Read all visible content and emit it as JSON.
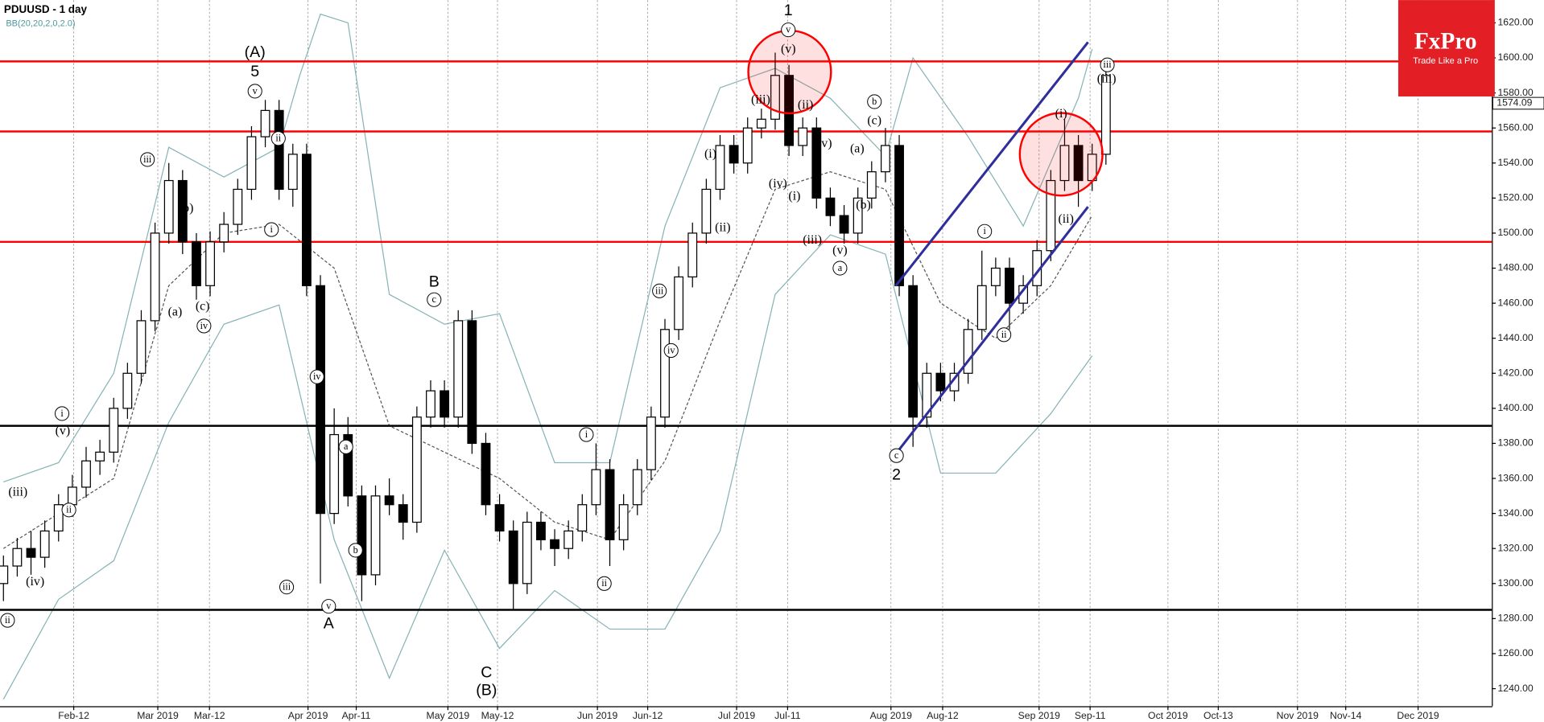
{
  "chart_data": {
    "type": "candlestick",
    "title": "PDUUSD  - 1 day",
    "subtitle": "BB(20,20,2,0,2.0)",
    "x": [
      0,
      2,
      4,
      6,
      8,
      10,
      12,
      14,
      16,
      18,
      20,
      22,
      24,
      26,
      28,
      30,
      32,
      34,
      36,
      38,
      40,
      42,
      44,
      46,
      48,
      50,
      52,
      54,
      56,
      58,
      60,
      62,
      64,
      66,
      68,
      70,
      72,
      74,
      76,
      78,
      80,
      82,
      84,
      86,
      88,
      90,
      92,
      94,
      96,
      98,
      100,
      102,
      104,
      106,
      108,
      110,
      112,
      114,
      116,
      118,
      120,
      122,
      124,
      126,
      128,
      130,
      132,
      134,
      136,
      138,
      140,
      142,
      144,
      146,
      148,
      150,
      152,
      154,
      156,
      158,
      160
    ],
    "open": [
      1300,
      1310,
      1320,
      1315,
      1330,
      1345,
      1355,
      1370,
      1375,
      1400,
      1420,
      1450,
      1500,
      1530,
      1495,
      1470,
      1495,
      1505,
      1525,
      1555,
      1570,
      1525,
      1545,
      1470,
      1340,
      1385,
      1350,
      1305,
      1350,
      1345,
      1335,
      1395,
      1410,
      1395,
      1450,
      1380,
      1345,
      1330,
      1300,
      1335,
      1325,
      1320,
      1330,
      1345,
      1365,
      1325,
      1345,
      1365,
      1395,
      1445,
      1475,
      1500,
      1525,
      1550,
      1540,
      1560,
      1565,
      1590,
      1550,
      1560,
      1520,
      1510,
      1500,
      1520,
      1535,
      1550,
      1470,
      1395,
      1420,
      1410,
      1420,
      1445,
      1470,
      1480,
      1460,
      1470,
      1490,
      1530,
      1550,
      1530,
      1545
    ],
    "high": [
      1316,
      1326,
      1330,
      1336,
      1351,
      1362,
      1378,
      1382,
      1406,
      1426,
      1456,
      1506,
      1540,
      1536,
      1500,
      1501,
      1512,
      1531,
      1561,
      1576,
      1576,
      1551,
      1551,
      1476,
      1400,
      1395,
      1356,
      1356,
      1360,
      1351,
      1401,
      1416,
      1416,
      1456,
      1456,
      1386,
      1351,
      1336,
      1341,
      1341,
      1331,
      1336,
      1351,
      1380,
      1371,
      1351,
      1371,
      1401,
      1451,
      1481,
      1506,
      1531,
      1556,
      1556,
      1566,
      1571,
      1603,
      1596,
      1566,
      1566,
      1526,
      1516,
      1526,
      1541,
      1560,
      1556,
      1476,
      1426,
      1426,
      1426,
      1451,
      1490,
      1486,
      1486,
      1476,
      1496,
      1536,
      1565,
      1556,
      1551,
      1598
    ],
    "low": [
      1290,
      1304,
      1305,
      1309,
      1324,
      1338,
      1349,
      1362,
      1369,
      1394,
      1414,
      1444,
      1494,
      1488,
      1462,
      1464,
      1489,
      1499,
      1519,
      1549,
      1519,
      1515,
      1464,
      1300,
      1334,
      1344,
      1290,
      1299,
      1339,
      1325,
      1329,
      1389,
      1389,
      1389,
      1374,
      1339,
      1324,
      1285,
      1294,
      1319,
      1310,
      1314,
      1324,
      1339,
      1310,
      1319,
      1339,
      1359,
      1389,
      1439,
      1469,
      1494,
      1519,
      1534,
      1534,
      1554,
      1559,
      1544,
      1544,
      1514,
      1504,
      1494,
      1494,
      1514,
      1529,
      1464,
      1378,
      1389,
      1404,
      1404,
      1414,
      1439,
      1464,
      1445,
      1454,
      1464,
      1484,
      1524,
      1515,
      1524,
      1539
    ],
    "close": [
      1310,
      1320,
      1315,
      1330,
      1345,
      1355,
      1370,
      1375,
      1400,
      1420,
      1450,
      1500,
      1530,
      1495,
      1470,
      1495,
      1505,
      1525,
      1555,
      1570,
      1525,
      1545,
      1470,
      1340,
      1385,
      1350,
      1305,
      1350,
      1345,
      1335,
      1395,
      1410,
      1395,
      1450,
      1380,
      1345,
      1330,
      1300,
      1335,
      1325,
      1320,
      1330,
      1345,
      1365,
      1325,
      1345,
      1365,
      1395,
      1445,
      1475,
      1500,
      1525,
      1550,
      1540,
      1560,
      1565,
      1590,
      1550,
      1560,
      1520,
      1510,
      1500,
      1520,
      1535,
      1550,
      1470,
      1395,
      1420,
      1410,
      1420,
      1445,
      1470,
      1480,
      1460,
      1470,
      1490,
      1530,
      1550,
      1530,
      1545,
      1590
    ],
    "color_up": "#ffffff",
    "color_down": "#000000",
    "xlim": [
      -0.5,
      216
    ],
    "ylim": [
      1230,
      1633
    ],
    "xticks": [
      {
        "value": 10.2,
        "label": "Feb-12"
      },
      {
        "value": 22.4,
        "label": "Mar 2019"
      },
      {
        "value": 29.9,
        "label": "Mar-12"
      },
      {
        "value": 44.2,
        "label": "Apr 2019"
      },
      {
        "value": 51.2,
        "label": "Apr-11"
      },
      {
        "value": 64.5,
        "label": "May 2019"
      },
      {
        "value": 71.7,
        "label": "May-12"
      },
      {
        "value": 86.2,
        "label": "Jun 2019"
      },
      {
        "value": 93.5,
        "label": "Jun-12"
      },
      {
        "value": 106.4,
        "label": "Jul 2019"
      },
      {
        "value": 113.8,
        "label": "Jul-11"
      },
      {
        "value": 128.8,
        "label": "Aug 2019"
      },
      {
        "value": 136.3,
        "label": "Aug-12"
      },
      {
        "value": 150.3,
        "label": "Sep 2019"
      },
      {
        "value": 157.7,
        "label": "Sep-11"
      },
      {
        "value": 169,
        "label": "Oct 2019"
      },
      {
        "value": 176.3,
        "label": "Oct-13"
      },
      {
        "value": 187.8,
        "label": "Nov 2019"
      },
      {
        "value": 194.8,
        "label": "Nov-14"
      },
      {
        "value": 205.3,
        "label": "Dec 2019"
      }
    ],
    "yticks": [
      {
        "value": 1240,
        "label": "1240.00"
      },
      {
        "value": 1260,
        "label": "1260.00"
      },
      {
        "value": 1280,
        "label": "1280.00"
      },
      {
        "value": 1300,
        "label": "1300.00"
      },
      {
        "value": 1320,
        "label": "1320.00"
      },
      {
        "value": 1340,
        "label": "1340.00"
      },
      {
        "value": 1360,
        "label": "1360.00"
      },
      {
        "value": 1380,
        "label": "1380.00"
      },
      {
        "value": 1400,
        "label": "1400.00"
      },
      {
        "value": 1420,
        "label": "1420.00"
      },
      {
        "value": 1440,
        "label": "1440.00"
      },
      {
        "value": 1460,
        "label": "1460.00"
      },
      {
        "value": 1480,
        "label": "1480.00"
      },
      {
        "value": 1500,
        "label": "1500.00"
      },
      {
        "value": 1520,
        "label": "1520.00"
      },
      {
        "value": 1540,
        "label": "1540.00"
      },
      {
        "value": 1560,
        "label": "1560.00"
      },
      {
        "value": 1580,
        "label": "1580.00"
      },
      {
        "value": 1600,
        "label": "1600.00"
      },
      {
        "value": 1620,
        "label": "1620.00"
      }
    ],
    "grid": true,
    "last_price": 1574.09,
    "bands": [
      {
        "color": "#86b3b5",
        "dash": false,
        "x": [
          0,
          8,
          16,
          24,
          32,
          40,
          43,
          46,
          50,
          56,
          64,
          72,
          80,
          88,
          96,
          104,
          112,
          120,
          128,
          132,
          140,
          148,
          156,
          158
        ],
        "values": [
          1358,
          1369,
          1420,
          1549,
          1532,
          1549,
          1590,
          1625,
          1620,
          1465,
          1448,
          1454,
          1369,
          1369,
          1504,
          1583,
          1594,
          1577,
          1544,
          1600,
          1555,
          1504,
          1577,
          1605
        ]
      },
      {
        "color": "#86b3b5",
        "dash": false,
        "x": [
          0,
          8,
          16,
          24,
          32,
          40,
          48,
          56,
          64,
          72,
          80,
          88,
          96,
          104,
          112,
          120,
          128,
          136,
          144,
          152,
          158
        ],
        "values": [
          1234,
          1291,
          1313,
          1392,
          1448,
          1459,
          1325,
          1246,
          1319,
          1263,
          1296,
          1274,
          1274,
          1330,
          1465,
          1499,
          1488,
          1363,
          1363,
          1397,
          1430
        ]
      },
      {
        "color": "#555555",
        "dash": true,
        "x": [
          0,
          16,
          24,
          32,
          40,
          48,
          56,
          64,
          72,
          80,
          88,
          96,
          104,
          112,
          120,
          128,
          136,
          144,
          152,
          158
        ],
        "values": [
          1320,
          1360,
          1470,
          1500,
          1505,
          1480,
          1390,
          1375,
          1360,
          1335,
          1325,
          1370,
          1450,
          1525,
          1535,
          1525,
          1460,
          1440,
          1470,
          1510
        ]
      }
    ],
    "levels": [
      {
        "value": 1598,
        "color": "#ff0000"
      },
      {
        "value": 1558,
        "color": "#ff0000"
      },
      {
        "value": 1495,
        "color": "#ff0000"
      },
      {
        "value": 1390,
        "color": "#000000"
      },
      {
        "value": 1285,
        "color": "#000000"
      }
    ],
    "channel_color": "#2e2e9c",
    "channel": [
      {
        "x": [
          129.5,
          157.4
        ],
        "values": [
          1470,
          1609
        ]
      },
      {
        "x": [
          129.5,
          157.4
        ],
        "values": [
          1374,
          1515
        ]
      }
    ],
    "circles": [
      {
        "x": 114.1,
        "y": 1592
      },
      {
        "x": 153.5,
        "y": 1545
      }
    ],
    "annotations": [
      {
        "x": 36.5,
        "y": 1603,
        "text": "(A)",
        "size": "big",
        "circled": false
      },
      {
        "x": 36.5,
        "y": 1592,
        "text": "5",
        "size": "big",
        "circled": false
      },
      {
        "x": 36.5,
        "y": 1581,
        "text": "v",
        "size": "small",
        "circled": true
      },
      {
        "x": 62.5,
        "y": 1472,
        "text": "B",
        "size": "big",
        "circled": false
      },
      {
        "x": 62.5,
        "y": 1462,
        "text": "c",
        "size": "small",
        "circled": true
      },
      {
        "x": 47.2,
        "y": 1287,
        "text": "v",
        "size": "small",
        "circled": true
      },
      {
        "x": 47.2,
        "y": 1277,
        "text": "A",
        "size": "big",
        "circled": false
      },
      {
        "x": 70.1,
        "y": 1249,
        "text": "C",
        "size": "big",
        "circled": false
      },
      {
        "x": 70.1,
        "y": 1239,
        "text": "(B)",
        "size": "big",
        "circled": false
      },
      {
        "x": 113.9,
        "y": 1627,
        "text": "1",
        "size": "big",
        "circled": false
      },
      {
        "x": 113.9,
        "y": 1616,
        "text": "v",
        "size": "small",
        "circled": true
      },
      {
        "x": 113.9,
        "y": 1605,
        "text": "(v)",
        "size": "normal",
        "circled": false
      },
      {
        "x": 129.6,
        "y": 1373,
        "text": "c",
        "size": "small",
        "circled": true
      },
      {
        "x": 129.6,
        "y": 1362,
        "text": "2",
        "size": "big",
        "circled": false
      },
      {
        "x": 41.1,
        "y": 1298,
        "text": "iii",
        "size": "small",
        "circled": true
      },
      {
        "x": 45.5,
        "y": 1418,
        "text": "iv",
        "size": "small",
        "circled": true
      },
      {
        "x": 38.9,
        "y": 1502,
        "text": "i",
        "size": "small",
        "circled": true
      },
      {
        "x": 39.9,
        "y": 1554,
        "text": "ii",
        "size": "small",
        "circled": true
      },
      {
        "x": 49.7,
        "y": 1378,
        "text": "a",
        "size": "small",
        "circled": true
      },
      {
        "x": 51.1,
        "y": 1319,
        "text": "b",
        "size": "small",
        "circled": true
      },
      {
        "x": 84.6,
        "y": 1385,
        "text": "i",
        "size": "small",
        "circled": true
      },
      {
        "x": 87.2,
        "y": 1300,
        "text": "ii",
        "size": "small",
        "circled": true
      },
      {
        "x": 95.2,
        "y": 1467,
        "text": "iii",
        "size": "small",
        "circled": true
      },
      {
        "x": 96.9,
        "y": 1433,
        "text": "iv",
        "size": "small",
        "circled": true
      },
      {
        "x": 142.4,
        "y": 1501,
        "text": "i",
        "size": "small",
        "circled": true
      },
      {
        "x": 145.2,
        "y": 1442,
        "text": "ii",
        "size": "small",
        "circled": true
      },
      {
        "x": 153.5,
        "y": 1568,
        "text": "(i)",
        "size": "normal",
        "circled": false
      },
      {
        "x": 154.2,
        "y": 1508,
        "text": "(ii)",
        "size": "normal",
        "circled": false
      },
      {
        "x": 160.2,
        "y": 1596,
        "text": "iii",
        "size": "small",
        "circled": true
      },
      {
        "x": 160.1,
        "y": 1588,
        "text": "(iii)",
        "size": "normal",
        "circled": false
      },
      {
        "x": 102.6,
        "y": 1545,
        "text": "(i)",
        "size": "normal",
        "circled": false
      },
      {
        "x": 104.4,
        "y": 1503,
        "text": "(ii)",
        "size": "normal",
        "circled": false
      },
      {
        "x": 109.9,
        "y": 1576,
        "text": "(iii)",
        "size": "normal",
        "circled": false
      },
      {
        "x": 112.4,
        "y": 1528,
        "text": "(iv)",
        "size": "normal",
        "circled": false
      },
      {
        "x": 114.8,
        "y": 1521,
        "text": "(i)",
        "size": "normal",
        "circled": false
      },
      {
        "x": 116.4,
        "y": 1573,
        "text": "(ii)",
        "size": "normal",
        "circled": false
      },
      {
        "x": 118.9,
        "y": 1551,
        "text": "(iv)",
        "size": "normal",
        "circled": false
      },
      {
        "x": 117.4,
        "y": 1496,
        "text": "(iii)",
        "size": "normal",
        "circled": false
      },
      {
        "x": 121.4,
        "y": 1490,
        "text": "(v)",
        "size": "normal",
        "circled": false
      },
      {
        "x": 121.4,
        "y": 1480,
        "text": "a",
        "size": "small",
        "circled": true
      },
      {
        "x": 123.9,
        "y": 1548,
        "text": "(a)",
        "size": "normal",
        "circled": false
      },
      {
        "x": 124.8,
        "y": 1516,
        "text": "(b)",
        "size": "normal",
        "circled": false
      },
      {
        "x": 126.4,
        "y": 1575,
        "text": "b",
        "size": "small",
        "circled": true
      },
      {
        "x": 126.4,
        "y": 1564,
        "text": "(c)",
        "size": "normal",
        "circled": false
      },
      {
        "x": 20.9,
        "y": 1542,
        "text": "iii",
        "size": "small",
        "circled": true
      },
      {
        "x": 26.5,
        "y": 1514,
        "text": "(b)",
        "size": "normal",
        "circled": false
      },
      {
        "x": 24.9,
        "y": 1455,
        "text": "(a)",
        "size": "normal",
        "circled": false
      },
      {
        "x": 28.9,
        "y": 1458,
        "text": "(c)",
        "size": "normal",
        "circled": false
      },
      {
        "x": 29.1,
        "y": 1447,
        "text": "iv",
        "size": "small",
        "circled": true
      },
      {
        "x": 8.5,
        "y": 1397,
        "text": "i",
        "size": "small",
        "circled": true
      },
      {
        "x": 8.6,
        "y": 1387,
        "text": "(v)",
        "size": "normal",
        "circled": false
      },
      {
        "x": 9.5,
        "y": 1342,
        "text": "ii",
        "size": "small",
        "circled": true
      },
      {
        "x": 2.1,
        "y": 1352,
        "text": "(iii)",
        "size": "normal",
        "circled": false
      },
      {
        "x": 4.6,
        "y": 1301,
        "text": "(iv)",
        "size": "normal",
        "circled": false
      },
      {
        "x": 0.6,
        "y": 1279,
        "text": "ii",
        "size": "small",
        "circled": true
      }
    ]
  },
  "logo": {
    "brand": "FxPro",
    "tagline": "Trade Like a Pro"
  }
}
